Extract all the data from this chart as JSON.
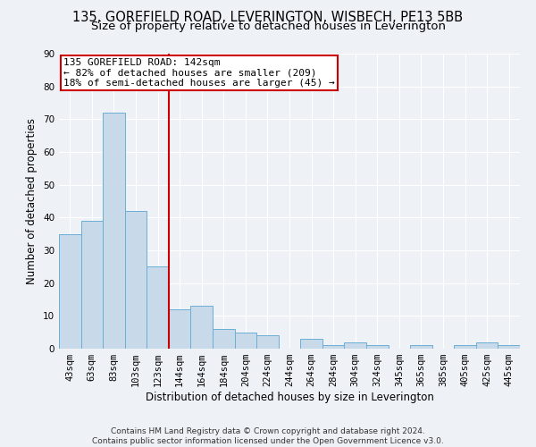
{
  "title": "135, GOREFIELD ROAD, LEVERINGTON, WISBECH, PE13 5BB",
  "subtitle": "Size of property relative to detached houses in Leverington",
  "xlabel": "Distribution of detached houses by size in Leverington",
  "ylabel": "Number of detached properties",
  "bar_labels": [
    "43sqm",
    "63sqm",
    "83sqm",
    "103sqm",
    "123sqm",
    "144sqm",
    "164sqm",
    "184sqm",
    "204sqm",
    "224sqm",
    "244sqm",
    "264sqm",
    "284sqm",
    "304sqm",
    "324sqm",
    "345sqm",
    "365sqm",
    "385sqm",
    "405sqm",
    "425sqm",
    "445sqm"
  ],
  "bar_values": [
    35,
    39,
    72,
    42,
    25,
    12,
    13,
    6,
    5,
    4,
    0,
    3,
    1,
    2,
    1,
    0,
    1,
    0,
    1,
    2,
    1
  ],
  "bar_color": "#c8d9ea",
  "bar_edge_color": "#6baed6",
  "vline_color": "#cc0000",
  "vline_position": 5,
  "ylim": [
    0,
    90
  ],
  "yticks": [
    0,
    10,
    20,
    30,
    40,
    50,
    60,
    70,
    80,
    90
  ],
  "annotation_title": "135 GOREFIELD ROAD: 142sqm",
  "annotation_line1": "← 82% of detached houses are smaller (209)",
  "annotation_line2": "18% of semi-detached houses are larger (45) →",
  "annotation_box_color": "#ffffff",
  "annotation_box_edge": "#cc0000",
  "footer_line1": "Contains HM Land Registry data © Crown copyright and database right 2024.",
  "footer_line2": "Contains public sector information licensed under the Open Government Licence v3.0.",
  "background_color": "#eef2f7",
  "grid_color": "#ffffff",
  "title_fontsize": 10.5,
  "subtitle_fontsize": 9.5,
  "axis_label_fontsize": 8.5,
  "tick_fontsize": 7.5,
  "annotation_fontsize": 8,
  "footer_fontsize": 6.5
}
